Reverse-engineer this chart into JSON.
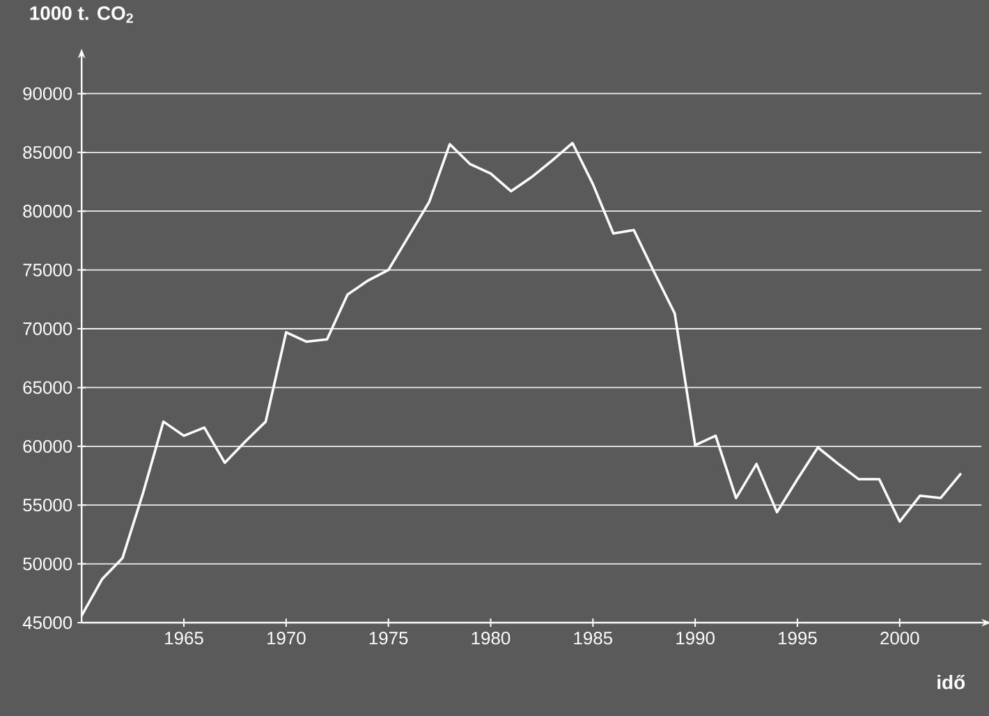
{
  "chart_data": {
    "type": "line",
    "xlabel": "idő",
    "ylabel": "1000 t. CO$_{2}$",
    "x": [
      1960,
      1961,
      1962,
      1963,
      1964,
      1965,
      1966,
      1967,
      1968,
      1969,
      1970,
      1971,
      1972,
      1973,
      1974,
      1975,
      1976,
      1977,
      1978,
      1979,
      1980,
      1981,
      1982,
      1983,
      1984,
      1985,
      1986,
      1987,
      1988,
      1989,
      1990,
      1991,
      1992,
      1993,
      1994,
      1995,
      1996,
      1997,
      1998,
      1999,
      2000,
      2001,
      2002,
      2003
    ],
    "series": [
      {
        "color": "#ffffff",
        "values": [
          45600,
          48700,
          50500,
          56000,
          62100,
          60900,
          61600,
          58600,
          60400,
          62100,
          69700,
          68900,
          69100,
          72900,
          74100,
          75000,
          77900,
          80800,
          85700,
          84000,
          83200,
          81700,
          82900,
          84300,
          85800,
          82300,
          78100,
          78400,
          74800,
          71300,
          60100,
          60900,
          55600,
          58500,
          54400,
          57200,
          59900,
          58500,
          57200,
          57200,
          53600,
          55800,
          55600,
          57700
        ]
      }
    ],
    "xlim": [
      1960,
      2004
    ],
    "ylim": [
      45000,
      93000
    ],
    "xticks": [
      1965,
      1970,
      1975,
      1980,
      1985,
      1990,
      1995,
      2000
    ],
    "yticks": [
      45000,
      50000,
      55000,
      60000,
      65000,
      70000,
      75000,
      80000,
      85000,
      90000
    ],
    "grid": "y",
    "marker": "none",
    "line_style": "solid"
  }
}
